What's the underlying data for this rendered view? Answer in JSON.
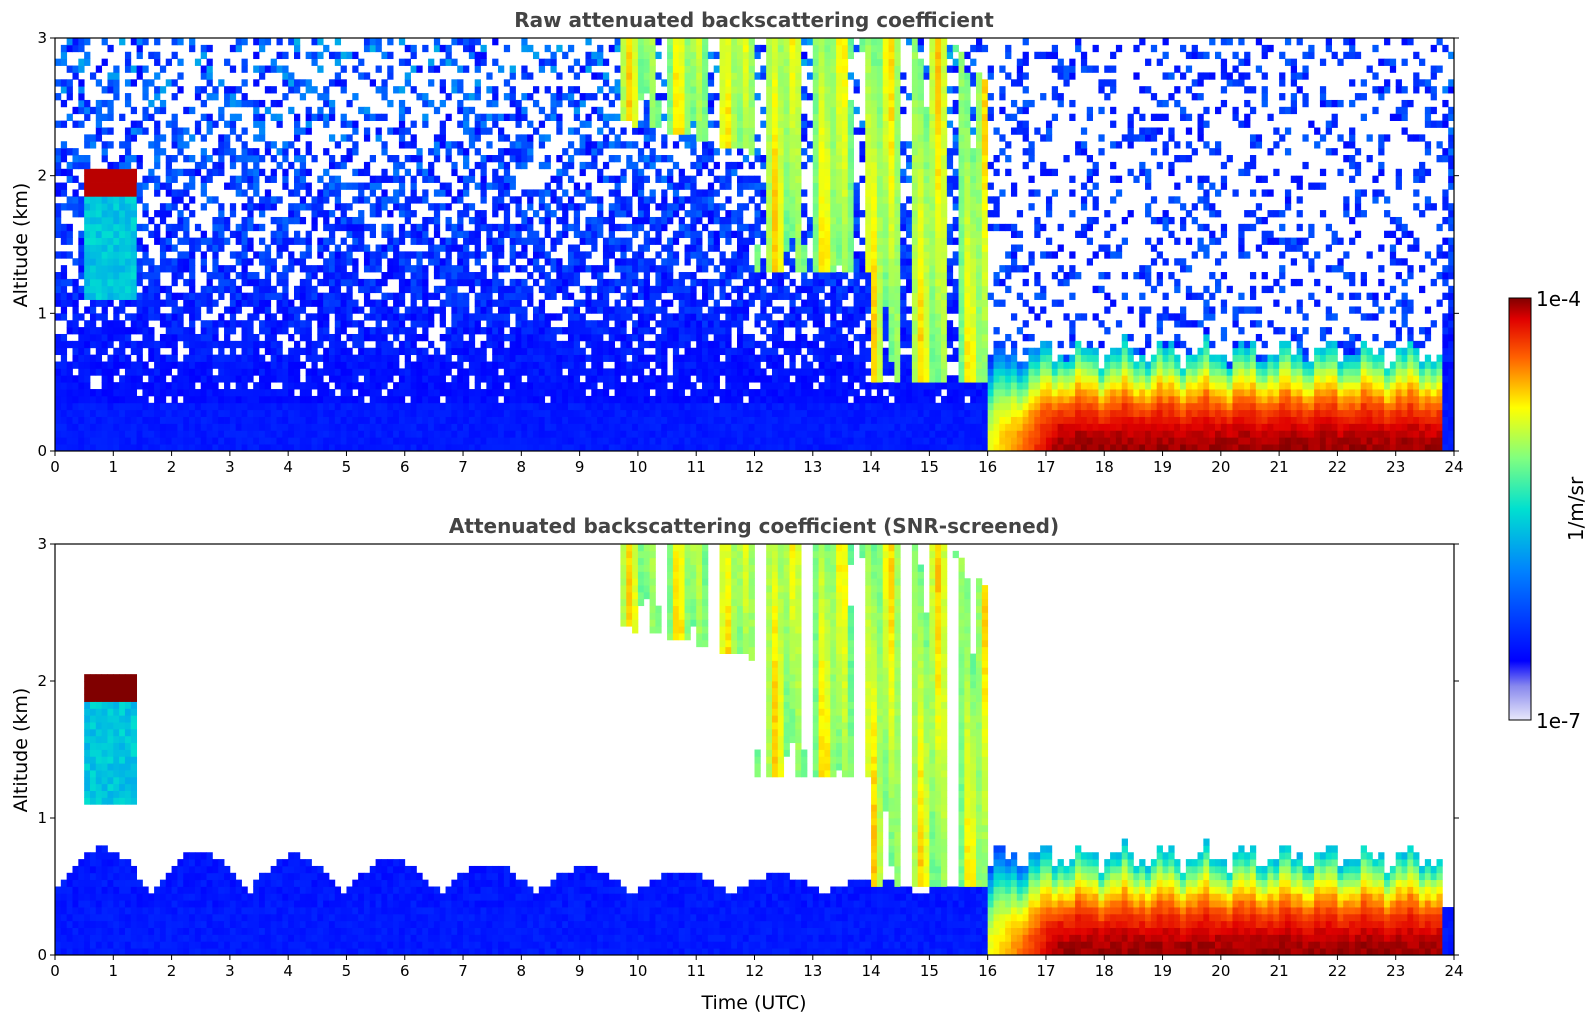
{
  "chart_data": [
    {
      "type": "heatmap",
      "title": "Raw attenuated backscattering coefficient",
      "xlabel": "",
      "ylabel": "Altitude (km)",
      "xlim": [
        0,
        24
      ],
      "ylim": [
        0,
        3
      ],
      "xticks": [
        "0",
        "1",
        "2",
        "3",
        "4",
        "5",
        "6",
        "7",
        "8",
        "9",
        "10",
        "11",
        "12",
        "13",
        "14",
        "15",
        "16",
        "17",
        "18",
        "19",
        "20",
        "21",
        "22",
        "23",
        "24"
      ],
      "yticks": [
        "0",
        "1",
        "2",
        "3"
      ],
      "features": [
        {
          "name": "boundary layer (weak)",
          "t0": 0.0,
          "t1": 16.0,
          "alt_top": 0.35,
          "level": 0.1
        },
        {
          "name": "aerosol layer",
          "t0": 16.0,
          "t1": 23.8,
          "alt_top": 0.75,
          "level": 0.9
        },
        {
          "name": "elevated cloud",
          "t0": 0.45,
          "t1": 1.35,
          "alt_bottom": 1.85,
          "alt_top": 2.0,
          "level": 0.98
        },
        {
          "name": "virga / fall streaks",
          "t0": 9.5,
          "t1": 16.0,
          "alt_bottom": 0.4,
          "alt_top": 3.0,
          "level": 0.55
        }
      ]
    },
    {
      "type": "heatmap",
      "title": "Attenuated backscattering coefficient (SNR-screened)",
      "xlabel": "Time (UTC)",
      "ylabel": "Altitude (km)",
      "xlim": [
        0,
        24
      ],
      "ylim": [
        0,
        3
      ],
      "xticks": [
        "0",
        "1",
        "2",
        "3",
        "4",
        "5",
        "6",
        "7",
        "8",
        "9",
        "10",
        "11",
        "12",
        "13",
        "14",
        "15",
        "16",
        "17",
        "18",
        "19",
        "20",
        "21",
        "22",
        "23",
        "24"
      ],
      "yticks": [
        "0",
        "1",
        "2",
        "3"
      ],
      "features": [
        {
          "name": "boundary layer (weak)",
          "t0": 0.0,
          "t1": 16.0,
          "alt_top": 0.8,
          "level": 0.12
        },
        {
          "name": "aerosol layer",
          "t0": 16.0,
          "t1": 23.8,
          "alt_top": 0.75,
          "level": 0.9
        },
        {
          "name": "elevated cloud",
          "t0": 0.45,
          "t1": 1.35,
          "alt_bottom": 1.85,
          "alt_top": 2.05,
          "level": 1.0
        },
        {
          "name": "virga / fall streaks",
          "t0": 9.7,
          "t1": 16.0,
          "alt_bottom": 0.4,
          "alt_top": 3.0,
          "level": 0.55
        }
      ]
    }
  ],
  "colorbar": {
    "max_label": "1e-4",
    "min_label": "1e-7",
    "unit_label": "1/m/sr",
    "scale": "log"
  }
}
